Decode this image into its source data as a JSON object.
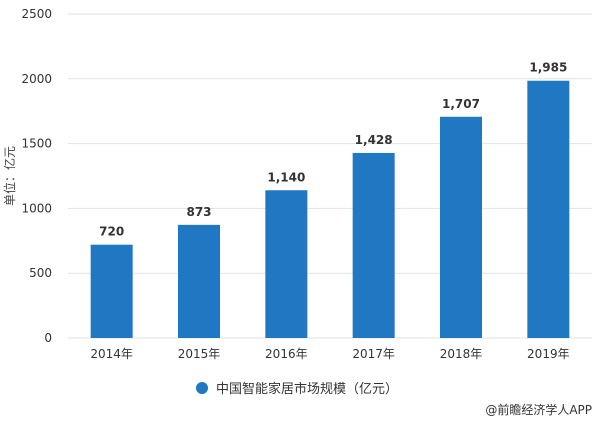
{
  "chart_data": {
    "type": "bar",
    "categories": [
      "2014年",
      "2015年",
      "2016年",
      "2017年",
      "2018年",
      "2019年"
    ],
    "series": [
      {
        "name": "中国智能家居市场规模（亿元）",
        "values": [
          720,
          873,
          1140,
          1428,
          1707,
          1985
        ]
      }
    ],
    "data_labels": [
      "720",
      "873",
      "1,140",
      "1,428",
      "1,707",
      "1,985"
    ],
    "ylabel": "单位：亿元",
    "ylim": [
      0,
      2500
    ],
    "yticks": [
      0,
      500,
      1000,
      1500,
      2000,
      2500
    ],
    "grid": true,
    "legend_position": "bottom",
    "bar_color": "#1f78c1",
    "grid_color": "#e3e3e3"
  },
  "source": "@前瞻经济学人APP"
}
